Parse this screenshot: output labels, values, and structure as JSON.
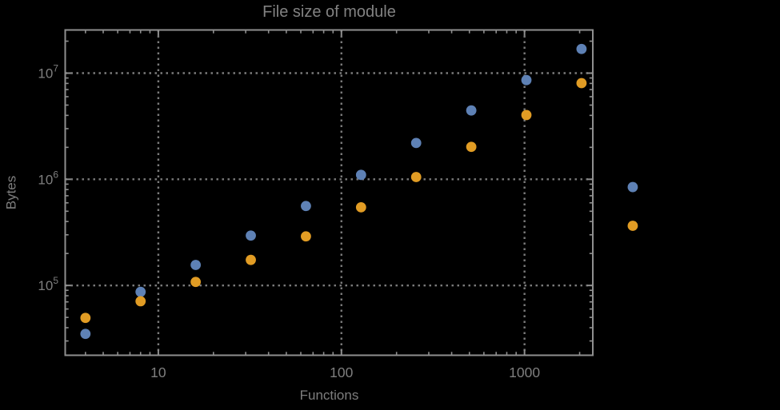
{
  "chart_data": {
    "type": "scatter",
    "title": "File size of module",
    "xlabel": "Functions",
    "ylabel": "Bytes",
    "x_scale": "log",
    "y_scale": "log",
    "xlim": [
      3.1,
      2360
    ],
    "ylim": [
      22000,
      25500000
    ],
    "grid": "dotted gray lines at major ticks only",
    "legend_position": "none",
    "x_major_ticks": [
      10,
      100,
      1000
    ],
    "x_tick_labels": [
      "10",
      "100",
      "1000"
    ],
    "y_major_ticks": [
      100000,
      1000000,
      10000000
    ],
    "y_tick_labels": [
      {
        "base": "10",
        "exp": "5"
      },
      {
        "base": "10",
        "exp": "6"
      },
      {
        "base": "10",
        "exp": "7"
      }
    ],
    "x": [
      4,
      8,
      16,
      32,
      64,
      128,
      256,
      512,
      1024,
      2048,
      3900
    ],
    "series": [
      {
        "name": "series-1-blue",
        "color": "#5e81b5",
        "values": [
          35000,
          87000,
          156000,
          295000,
          560000,
          1100000,
          2200000,
          4450000,
          8600000,
          16900000,
          845000
        ]
      },
      {
        "name": "series-2-orange",
        "color": "#e19c24",
        "values": [
          49500,
          71000,
          108000,
          174000,
          290000,
          545000,
          1050000,
          2020000,
          4030000,
          8050000,
          365000
        ]
      }
    ]
  },
  "colors": {
    "background": "#000000",
    "frame": "#8f8f8f",
    "grid": "#7a7a7a",
    "text": "#7e7e7e",
    "series1": "#5e81b5",
    "series2": "#e19c24"
  }
}
